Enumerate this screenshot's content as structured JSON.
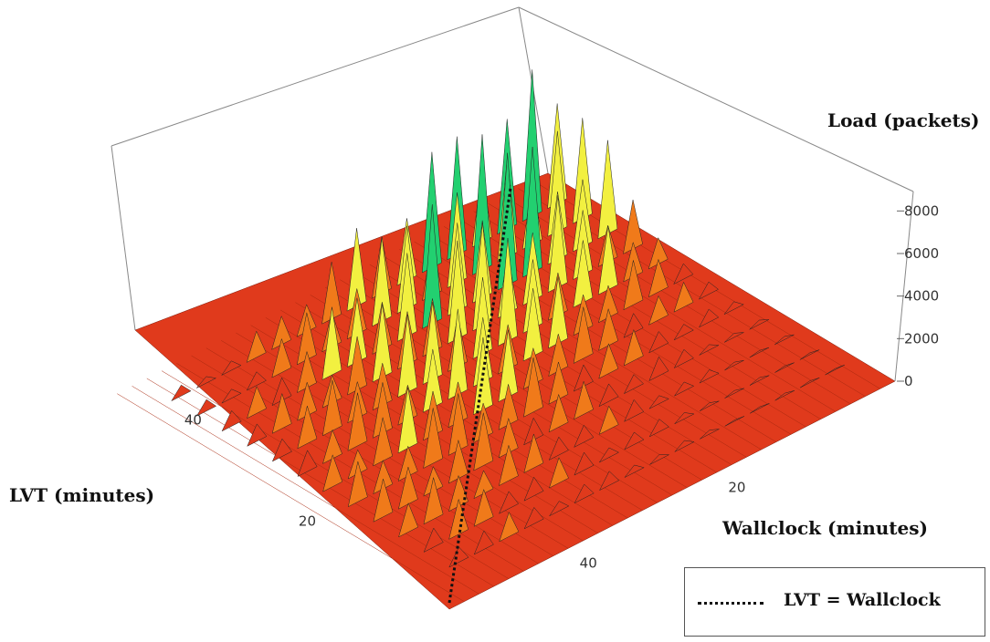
{
  "chart_data": {
    "type": "surface3d",
    "title": "",
    "zlabel": "Load (packets)",
    "xlabel": "Wallclock (minutes)",
    "ylabel": "LVT  (minutes)",
    "z_ticks": [
      0,
      2000,
      4000,
      6000,
      8000
    ],
    "x_ticks": [
      20,
      40
    ],
    "y_ticks": [
      20,
      40
    ],
    "xlim": [
      0,
      60
    ],
    "ylim": [
      0,
      55
    ],
    "zlim": [
      0,
      9000
    ],
    "legend": {
      "placement": "bottom-right",
      "entries": [
        {
          "label": "LVT = Wallclock",
          "style": "dotted"
        }
      ]
    },
    "colors": {
      "low": "#e03a1c",
      "mid": "#f07a1a",
      "high_mid": "#f2f040",
      "high": "#22d070"
    },
    "reference_line": {
      "name": "LVT = Wallclock",
      "points": [
        [
          0,
          0
        ],
        [
          55,
          55
        ]
      ]
    },
    "ridges": [
      {
        "lvt": 50,
        "peak_load": 7600
      },
      {
        "lvt": 46,
        "peak_load": 6800
      },
      {
        "lvt": 42,
        "peak_load": 7200
      },
      {
        "lvt": 38,
        "peak_load": 5600
      },
      {
        "lvt": 34,
        "peak_load": 5200
      },
      {
        "lvt": 30,
        "peak_load": 4400
      },
      {
        "lvt": 26,
        "peak_load": 3800
      },
      {
        "lvt": 22,
        "peak_load": 3200
      },
      {
        "lvt": 18,
        "peak_load": 2600
      },
      {
        "lvt": 14,
        "peak_load": 2200
      },
      {
        "lvt": 10,
        "peak_load": 1800
      },
      {
        "lvt": 6,
        "peak_load": 1400
      }
    ]
  }
}
